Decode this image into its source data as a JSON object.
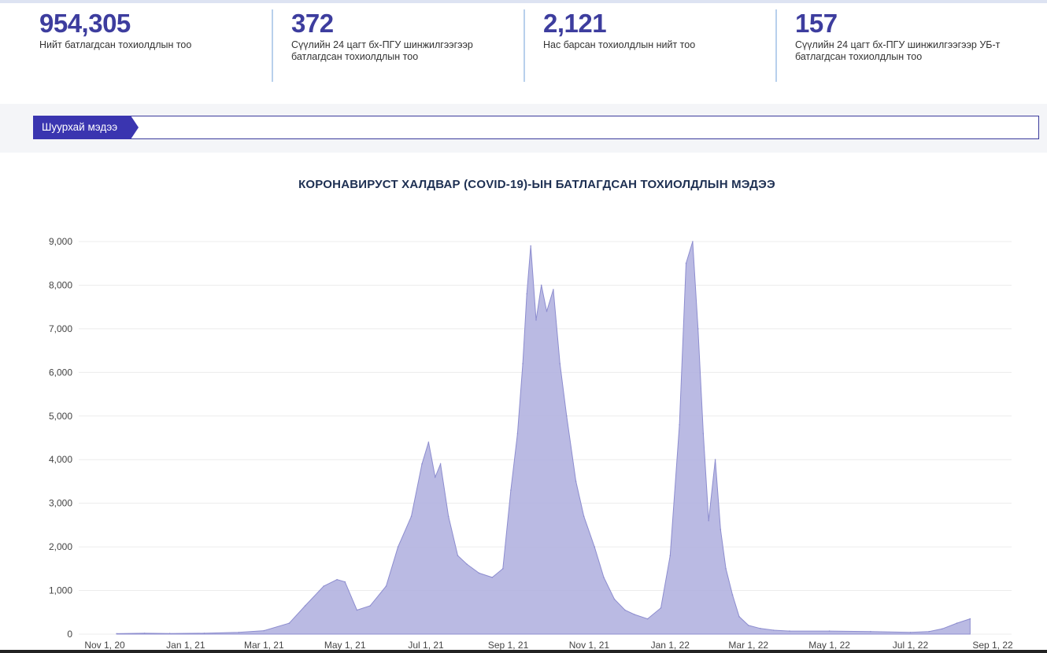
{
  "stats": [
    {
      "value": "954,305",
      "label": "Нийт батлагдсан тохиолдлын тоо"
    },
    {
      "value": "372",
      "label": "Сүүлийн 24 цагт бх-ПГУ шинжилгээгээр батлагдсан тохиолдлын тоо"
    },
    {
      "value": "2,121",
      "label": "Нас барсан тохиолдлын нийт тоо"
    },
    {
      "value": "157",
      "label": "Сүүлийн 24 цагт бх-ПГУ шинжилгээгээр УБ-т батлагдсан тохиолдлын тоо"
    }
  ],
  "ticker": {
    "label": "Шуурхай мэдээ",
    "text": ""
  },
  "chart_title": "КОРОНАВИРУСТ ХАЛДВАР (COVID-19)-ЫН БАТЛАГДСАН ТОХИОЛДЛЫН МЭДЭЭ",
  "colors": {
    "accent": "#3d3d9e",
    "area_fill": "#b3b3e0",
    "area_stroke": "#8d8dcf"
  },
  "chart_data": {
    "type": "area",
    "title": "КОРОНАВИРУСТ ХАЛДВАР (COVID-19)-ЫН БАТЛАГДСАН ТОХИОЛДЛЫН МЭДЭЭ",
    "xlabel": "",
    "ylabel": "",
    "ylim": [
      0,
      9300
    ],
    "grid": true,
    "legend": "none",
    "y_ticks": [
      "0",
      "1,000",
      "2,000",
      "3,000",
      "4,000",
      "5,000",
      "6,000",
      "7,000",
      "8,000",
      "9,000"
    ],
    "x_ticks": [
      {
        "label": "Nov 1, 20",
        "date": "2020-11-01"
      },
      {
        "label": "Jan 1, 21",
        "date": "2021-01-01"
      },
      {
        "label": "Mar 1, 21",
        "date": "2021-03-01"
      },
      {
        "label": "May 1, 21",
        "date": "2021-05-01"
      },
      {
        "label": "Jul 1, 21",
        "date": "2021-07-01"
      },
      {
        "label": "Sep 1, 21",
        "date": "2021-09-01"
      },
      {
        "label": "Nov 1, 21",
        "date": "2021-11-01"
      },
      {
        "label": "Jan 1, 22",
        "date": "2022-01-01"
      },
      {
        "label": "Mar 1, 22",
        "date": "2022-03-01"
      },
      {
        "label": "May 1, 22",
        "date": "2022-05-01"
      },
      {
        "label": "Jul 1, 22",
        "date": "2022-07-01"
      },
      {
        "label": "Sep 1, 22",
        "date": "2022-09-01"
      }
    ],
    "series": [
      {
        "x": [
          "2020-11-10",
          "2020-12-01",
          "2020-12-20",
          "2021-01-15",
          "2021-02-10",
          "2021-03-01",
          "2021-03-20",
          "2021-04-01",
          "2021-04-15",
          "2021-04-25",
          "2021-05-01",
          "2021-05-10",
          "2021-05-20",
          "2021-06-01",
          "2021-06-10",
          "2021-06-20",
          "2021-06-28",
          "2021-07-03",
          "2021-07-08",
          "2021-07-12",
          "2021-07-18",
          "2021-07-25",
          "2021-08-01",
          "2021-08-10",
          "2021-08-20",
          "2021-08-28",
          "2021-09-03",
          "2021-09-08",
          "2021-09-12",
          "2021-09-15",
          "2021-09-18",
          "2021-09-22",
          "2021-09-26",
          "2021-09-30",
          "2021-10-05",
          "2021-10-10",
          "2021-10-15",
          "2021-10-22",
          "2021-10-28",
          "2021-11-05",
          "2021-11-12",
          "2021-11-20",
          "2021-11-28",
          "2021-12-05",
          "2021-12-15",
          "2021-12-25",
          "2022-01-01",
          "2022-01-08",
          "2022-01-13",
          "2022-01-18",
          "2022-01-22",
          "2022-01-26",
          "2022-01-30",
          "2022-02-04",
          "2022-02-08",
          "2022-02-12",
          "2022-02-17",
          "2022-02-22",
          "2022-03-01",
          "2022-03-10",
          "2022-03-20",
          "2022-04-01",
          "2022-05-01",
          "2022-06-01",
          "2022-07-01",
          "2022-07-15",
          "2022-07-25",
          "2022-08-05",
          "2022-08-15"
        ],
        "y": [
          10,
          20,
          15,
          20,
          40,
          80,
          250,
          650,
          1100,
          1250,
          1200,
          550,
          650,
          1100,
          2000,
          2700,
          3900,
          4400,
          3600,
          3900,
          2700,
          1800,
          1600,
          1400,
          1300,
          1500,
          3300,
          4600,
          6200,
          7800,
          8900,
          7200,
          8000,
          7400,
          7900,
          6200,
          5000,
          3500,
          2700,
          2000,
          1300,
          800,
          550,
          450,
          350,
          600,
          1800,
          4800,
          8500,
          9000,
          7000,
          4600,
          2600,
          4000,
          2400,
          1500,
          900,
          400,
          200,
          130,
          90,
          70,
          70,
          60,
          40,
          60,
          120,
          250,
          350
        ]
      }
    ]
  }
}
